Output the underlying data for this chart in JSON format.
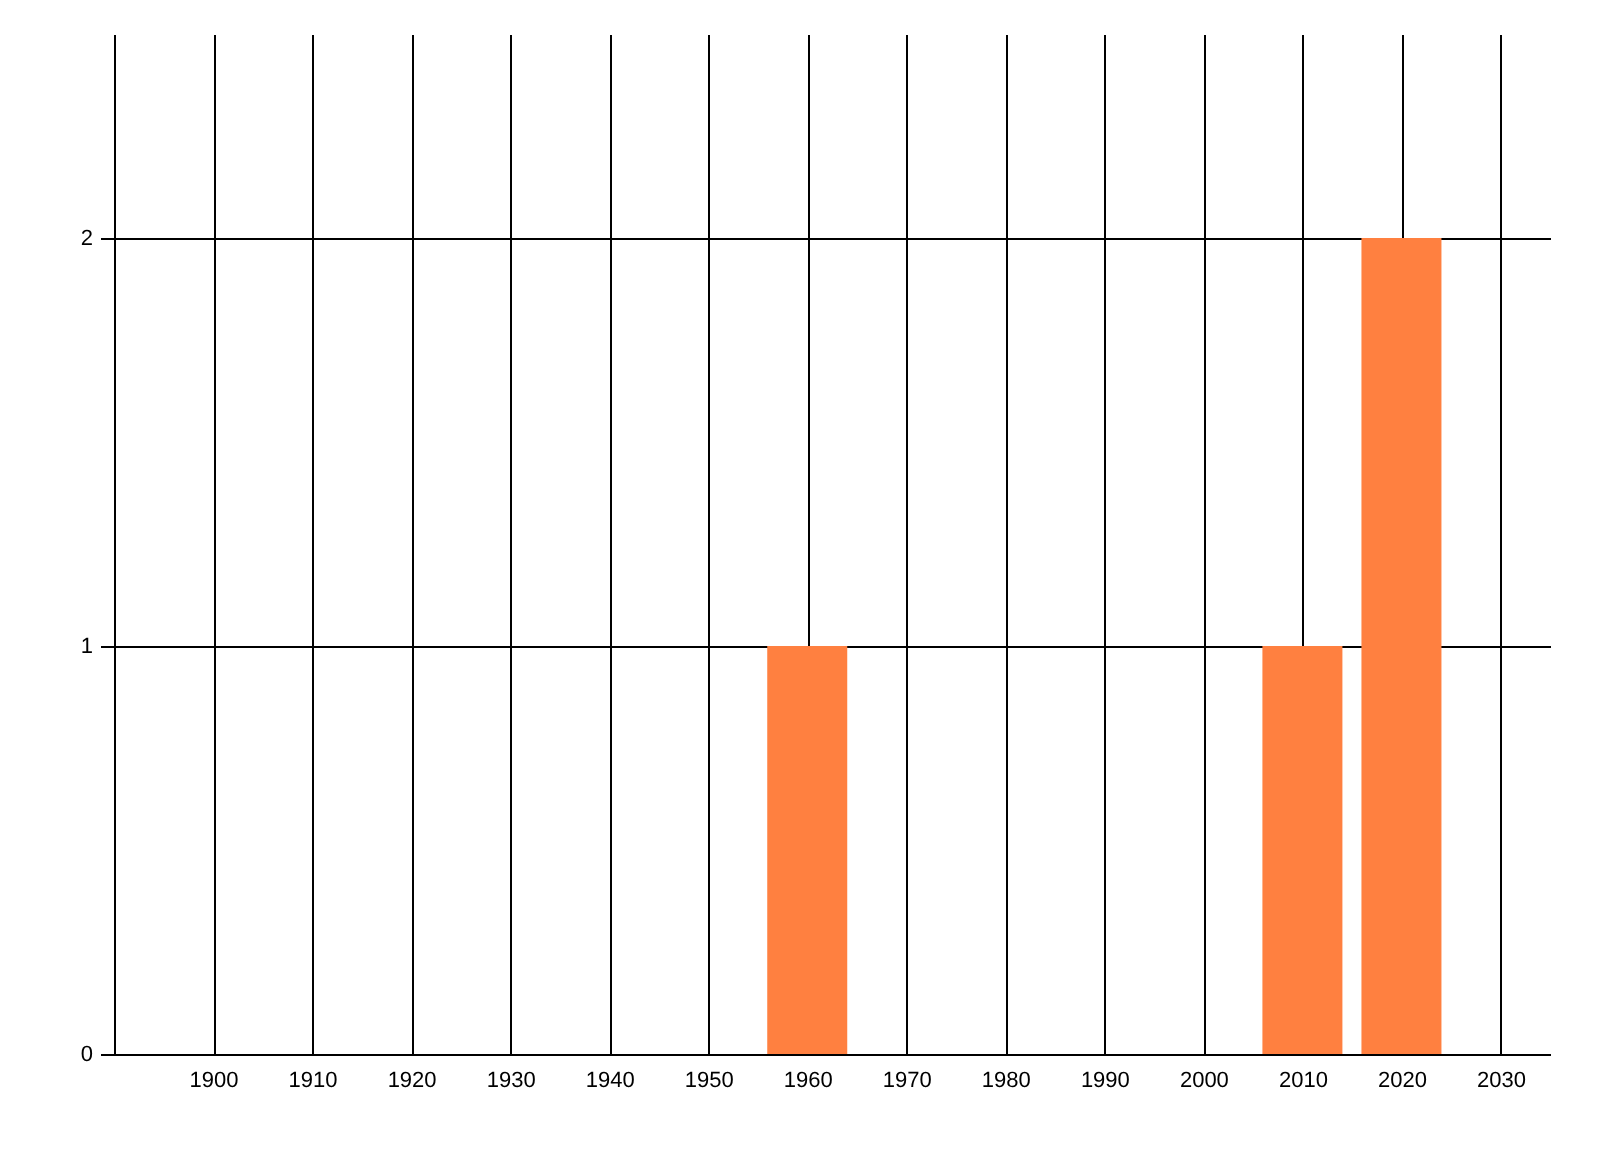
{
  "chart_data": {
    "type": "bar",
    "x": [
      1960,
      2010,
      2020
    ],
    "values": [
      1,
      1,
      2
    ],
    "color": "#ff8040",
    "xlim": [
      1890,
      2035
    ],
    "xticks": [
      1900,
      1910,
      1920,
      1930,
      1940,
      1950,
      1960,
      1970,
      1980,
      1990,
      2000,
      2010,
      2020,
      2030
    ],
    "ylim": [
      0,
      2.5
    ],
    "yticks": [
      0,
      1,
      2
    ],
    "grid": true
  }
}
